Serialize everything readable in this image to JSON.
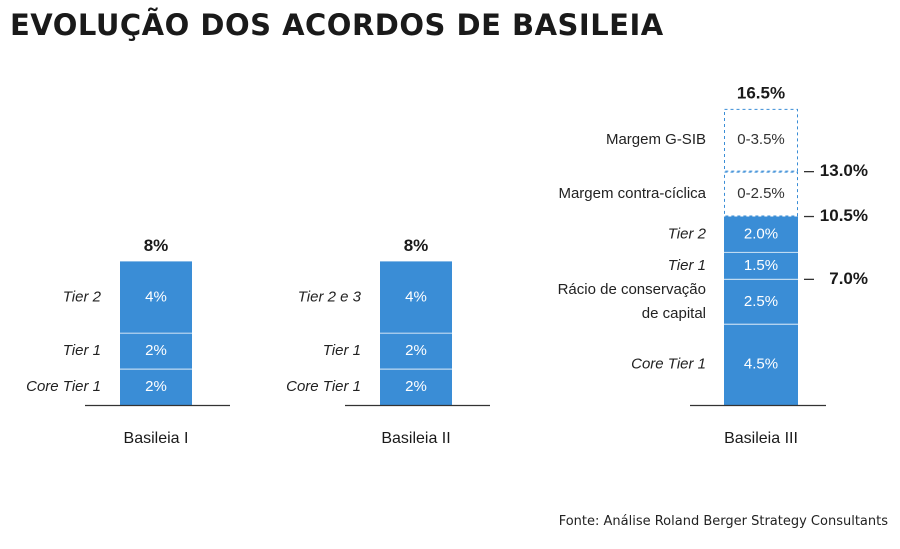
{
  "title": "EVOLUÇÃO DOS ACORDOS DE BASILEIA",
  "source": "Fonte: Análise Roland Berger Strategy Consultants",
  "colors": {
    "bar": "#3a8dd6",
    "dashed": "#3a8dd6",
    "text": "#1a1a1a",
    "bar_text": "#ffffff",
    "axis": "#333333"
  },
  "chart_data": {
    "type": "bar",
    "stacked": true,
    "title": "EVOLUÇÃO DOS ACORDOS DE BASILEIA",
    "categories": [
      "Basileia I",
      "Basileia II",
      "Basileia III"
    ],
    "columns": [
      {
        "name": "Basileia I",
        "total_label": "8%",
        "segments": [
          {
            "label": "Core Tier 1",
            "value": 2,
            "value_label": "2%",
            "italic": true
          },
          {
            "label": "Tier 1",
            "value": 2,
            "value_label": "2%",
            "italic": true
          },
          {
            "label": "Tier 2",
            "value": 4,
            "value_label": "4%",
            "italic": true
          }
        ],
        "markers": []
      },
      {
        "name": "Basileia II",
        "total_label": "8%",
        "segments": [
          {
            "label": "Core Tier 1",
            "value": 2,
            "value_label": "2%",
            "italic": true
          },
          {
            "label": "Tier 1",
            "value": 2,
            "value_label": "2%",
            "italic": true
          },
          {
            "label": "Tier 2 e 3",
            "value": 4,
            "value_label": "4%",
            "italic": true
          }
        ],
        "markers": []
      },
      {
        "name": "Basileia III",
        "total_label": "16.5%",
        "segments": [
          {
            "label": "Core Tier 1",
            "value": 4.5,
            "value_label": "4.5%",
            "italic": true
          },
          {
            "label_lines": [
              "Rácio de conservação",
              "de capital"
            ],
            "value": 2.5,
            "value_label": "2.5%",
            "italic": false
          },
          {
            "label": "Tier 1",
            "value": 1.5,
            "value_label": "1.5%",
            "italic": true
          },
          {
            "label": "Tier 2",
            "value": 2.0,
            "value_label": "2.0%",
            "italic": true
          },
          {
            "label": "Margem contra-cíclica",
            "value": 2.5,
            "value_label": "0-2.5%",
            "italic": false,
            "dashed": true
          },
          {
            "label": "Margem G-SIB",
            "value": 3.5,
            "value_label": "0-3.5%",
            "italic": false,
            "dashed": true
          }
        ],
        "markers": [
          {
            "value": 7.0,
            "label": "7.0%"
          },
          {
            "value": 10.5,
            "label": "10.5%"
          },
          {
            "value": 13.0,
            "label": "13.0%"
          }
        ]
      }
    ]
  }
}
